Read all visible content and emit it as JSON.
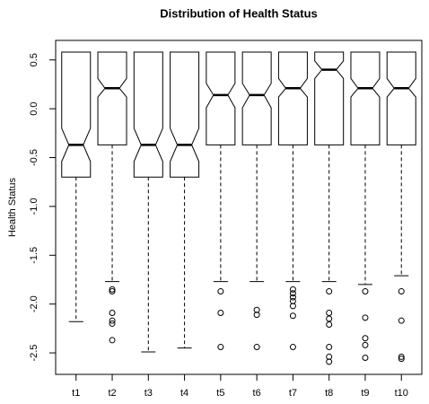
{
  "chart_data": {
    "type": "boxplot",
    "title": "Distribution of Health Status",
    "y_label": "Health Status",
    "ylim": [
      -2.72,
      0.7
    ],
    "yticks": [
      -2.5,
      {
        "value": -2,
        "label": "-2.0"
      },
      -1.5,
      {
        "value": -1,
        "label": "-1.0"
      },
      -0.5,
      {
        "value": 0,
        "label": "0.0"
      },
      0.5
    ],
    "notched": true,
    "color": "#000000",
    "boxes": [
      {
        "name": "t1",
        "whisker_low": -2.18,
        "q1": -0.7,
        "median": -0.37,
        "q3": 0.58,
        "whisker_high": 0.58,
        "notch_low": -0.54,
        "notch_high": -0.2,
        "outliers": []
      },
      {
        "name": "t2",
        "whisker_low": -1.77,
        "q1": -0.37,
        "median": 0.21,
        "q3": 0.58,
        "whisker_high": 0.58,
        "notch_low": 0.12,
        "notch_high": 0.31,
        "outliers": [
          -1.85,
          -1.87,
          -2.09,
          -2.17,
          -2.2,
          -2.37
        ]
      },
      {
        "name": "t3",
        "whisker_low": -2.49,
        "q1": -0.7,
        "median": -0.37,
        "q3": 0.58,
        "whisker_high": 0.58,
        "notch_low": -0.54,
        "notch_high": -0.2,
        "outliers": []
      },
      {
        "name": "t4",
        "whisker_low": -2.45,
        "q1": -0.7,
        "median": -0.37,
        "q3": 0.58,
        "whisker_high": 0.58,
        "notch_low": -0.54,
        "notch_high": -0.2,
        "outliers": []
      },
      {
        "name": "t5",
        "whisker_low": -1.77,
        "q1": -0.37,
        "median": 0.14,
        "q3": 0.58,
        "whisker_high": 0.58,
        "notch_low": 0.01,
        "notch_high": 0.26,
        "outliers": [
          -1.87,
          -2.09,
          -2.44
        ]
      },
      {
        "name": "t6",
        "whisker_low": -1.77,
        "q1": -0.37,
        "median": 0.14,
        "q3": 0.58,
        "whisker_high": 0.58,
        "notch_low": 0.01,
        "notch_high": 0.26,
        "outliers": [
          -2.06,
          -2.11,
          -2.44
        ]
      },
      {
        "name": "t7",
        "whisker_low": -1.77,
        "q1": -0.37,
        "median": 0.21,
        "q3": 0.58,
        "whisker_high": 0.58,
        "notch_low": 0.12,
        "notch_high": 0.31,
        "outliers": [
          -1.85,
          -1.89,
          -1.93,
          -1.97,
          -2.02,
          -2.12,
          -2.44
        ]
      },
      {
        "name": "t8",
        "whisker_low": -1.77,
        "q1": -0.37,
        "median": 0.4,
        "q3": 0.58,
        "whisker_high": 0.58,
        "notch_low": 0.31,
        "notch_high": 0.49,
        "outliers": [
          -1.87,
          -2.09,
          -2.15,
          -2.21,
          -2.44,
          -2.54,
          -2.59
        ]
      },
      {
        "name": "t9",
        "whisker_low": -1.8,
        "q1": -0.37,
        "median": 0.21,
        "q3": 0.58,
        "whisker_high": 0.58,
        "notch_low": 0.12,
        "notch_high": 0.31,
        "outliers": [
          -1.87,
          -2.14,
          -2.35,
          -2.42,
          -2.55
        ]
      },
      {
        "name": "t10",
        "whisker_low": -1.71,
        "q1": -0.37,
        "median": 0.21,
        "q3": 0.58,
        "whisker_high": 0.58,
        "notch_low": 0.12,
        "notch_high": 0.31,
        "outliers": [
          -1.87,
          -2.17,
          -2.54,
          -2.56
        ]
      }
    ]
  }
}
